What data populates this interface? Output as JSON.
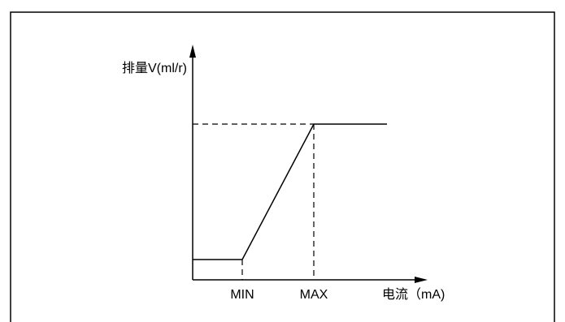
{
  "diagram": {
    "y_axis_label": "排量V(ml/r)",
    "x_axis_label": "电流（mA)",
    "x_ticks": [
      "MIN",
      "MAX"
    ]
  },
  "style": {
    "line_color": "#000000",
    "frame_color": "#000000",
    "background": "#ffffff"
  }
}
